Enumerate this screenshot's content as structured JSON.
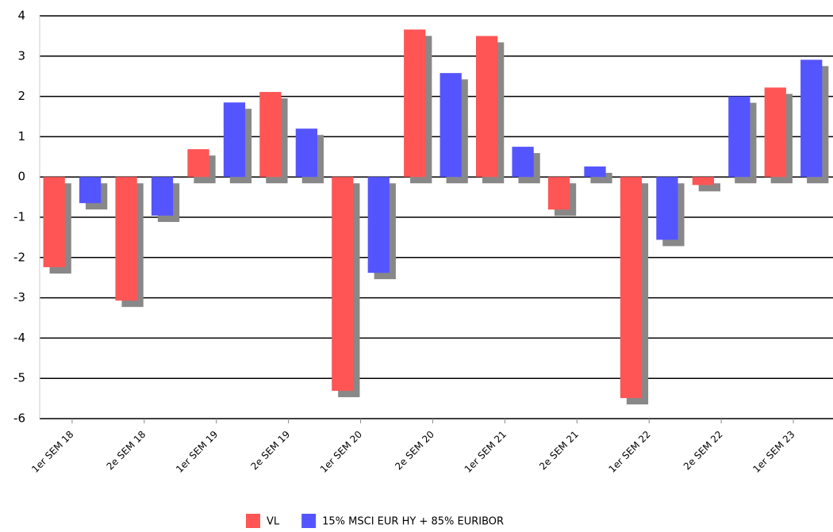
{
  "chart_data": {
    "type": "bar",
    "categories": [
      "1er SEM 18",
      "2e SEM 18",
      "1er SEM 19",
      "2e SEM 19",
      "1er SEM 20",
      "2e SEM 20",
      "1er SEM 21",
      "2e SEM 21",
      "1er SEM 22",
      "2e SEM 22",
      "1er SEM 23"
    ],
    "series": [
      {
        "name": "VL",
        "color": "#ff5555",
        "values": [
          -2.24,
          -3.07,
          0.69,
          2.11,
          -5.31,
          3.66,
          3.5,
          -0.81,
          -5.49,
          -0.2,
          2.22
        ]
      },
      {
        "name": "15% MSCI EUR HY + 85% EURIBOR",
        "color": "#5555ff",
        "values": [
          -0.65,
          -0.96,
          1.85,
          1.2,
          -2.38,
          2.58,
          0.75,
          0.26,
          -1.56,
          2.0,
          2.91
        ]
      }
    ],
    "ylim": [
      -6,
      4
    ],
    "yticks": [
      -6,
      -5,
      -4,
      -3,
      -2,
      -1,
      0,
      1,
      2,
      3,
      4
    ],
    "grid": true,
    "legend": "bottom"
  }
}
